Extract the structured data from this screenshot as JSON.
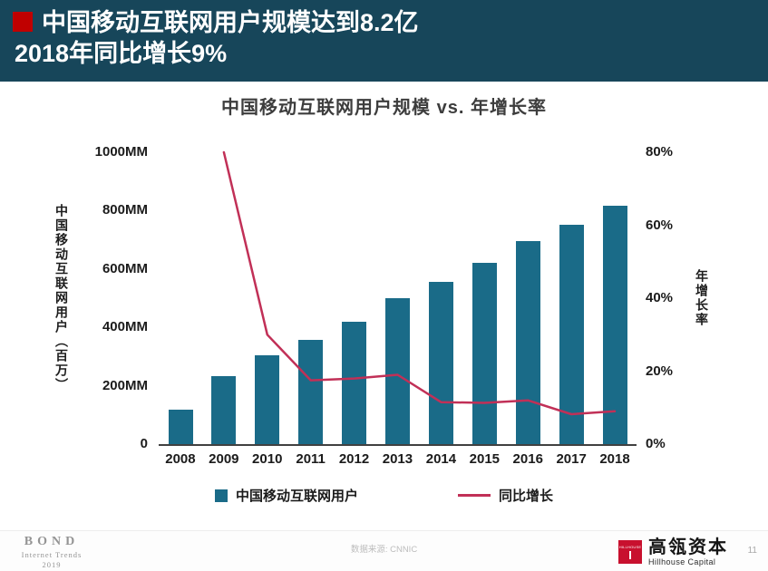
{
  "header": {
    "title_line1": "中国移动互联网用户规模达到8.2亿",
    "title_line2": "2018年同比增长9%"
  },
  "chart": {
    "title": "中国移动互联网用户规模 vs. 年增长率",
    "left_axis": {
      "title": "中国移动互联网用户（百万）",
      "ticks": [
        "1000MM",
        "800MM",
        "600MM",
        "400MM",
        "200MM",
        "0"
      ]
    },
    "right_axis": {
      "title": "年增长率",
      "ticks": [
        "80%",
        "60%",
        "40%",
        "20%",
        "0%"
      ]
    },
    "legend": {
      "bars_label": "中国移动互联网用户",
      "line_label": "同比增长"
    },
    "colors": {
      "header_bg": "#17465a",
      "accent_red": "#c00000",
      "bar": "#1a6b88",
      "line": "#c13057",
      "hillhouse_red": "#c8102e"
    }
  },
  "chart_data": {
    "type": "bar",
    "categories": [
      "2008",
      "2009",
      "2010",
      "2011",
      "2012",
      "2013",
      "2014",
      "2015",
      "2016",
      "2017",
      "2018"
    ],
    "series": [
      {
        "name": "中国移动互联网用户",
        "type": "bar",
        "axis": "left",
        "unit": "MM",
        "values": [
          118,
          233,
          303,
          356,
          420,
          500,
          557,
          620,
          695,
          753,
          817
        ]
      },
      {
        "name": "同比增长",
        "type": "line",
        "axis": "right",
        "unit": "%",
        "values": [
          null,
          80,
          30,
          17.5,
          18,
          19,
          11.5,
          11.3,
          12,
          8.2,
          9
        ]
      }
    ],
    "title": "中国移动互联网用户规模 vs. 年增长率",
    "left_ylabel": "中国移动互联网用户（百万）",
    "right_ylabel": "年增长率",
    "left_ylim": [
      0,
      1000
    ],
    "right_ylim": [
      0,
      80
    ],
    "grid": false,
    "legend_position": "bottom"
  },
  "footer": {
    "bond": {
      "line1": "BOND",
      "line2": "Internet Trends",
      "line3": "2019"
    },
    "source": "数据来源: CNNIC",
    "hillhouse": {
      "logo_text": "HILLHOUSE",
      "cn": "高瓴资本",
      "en": "Hillhouse Capital"
    },
    "page_number": "11"
  }
}
